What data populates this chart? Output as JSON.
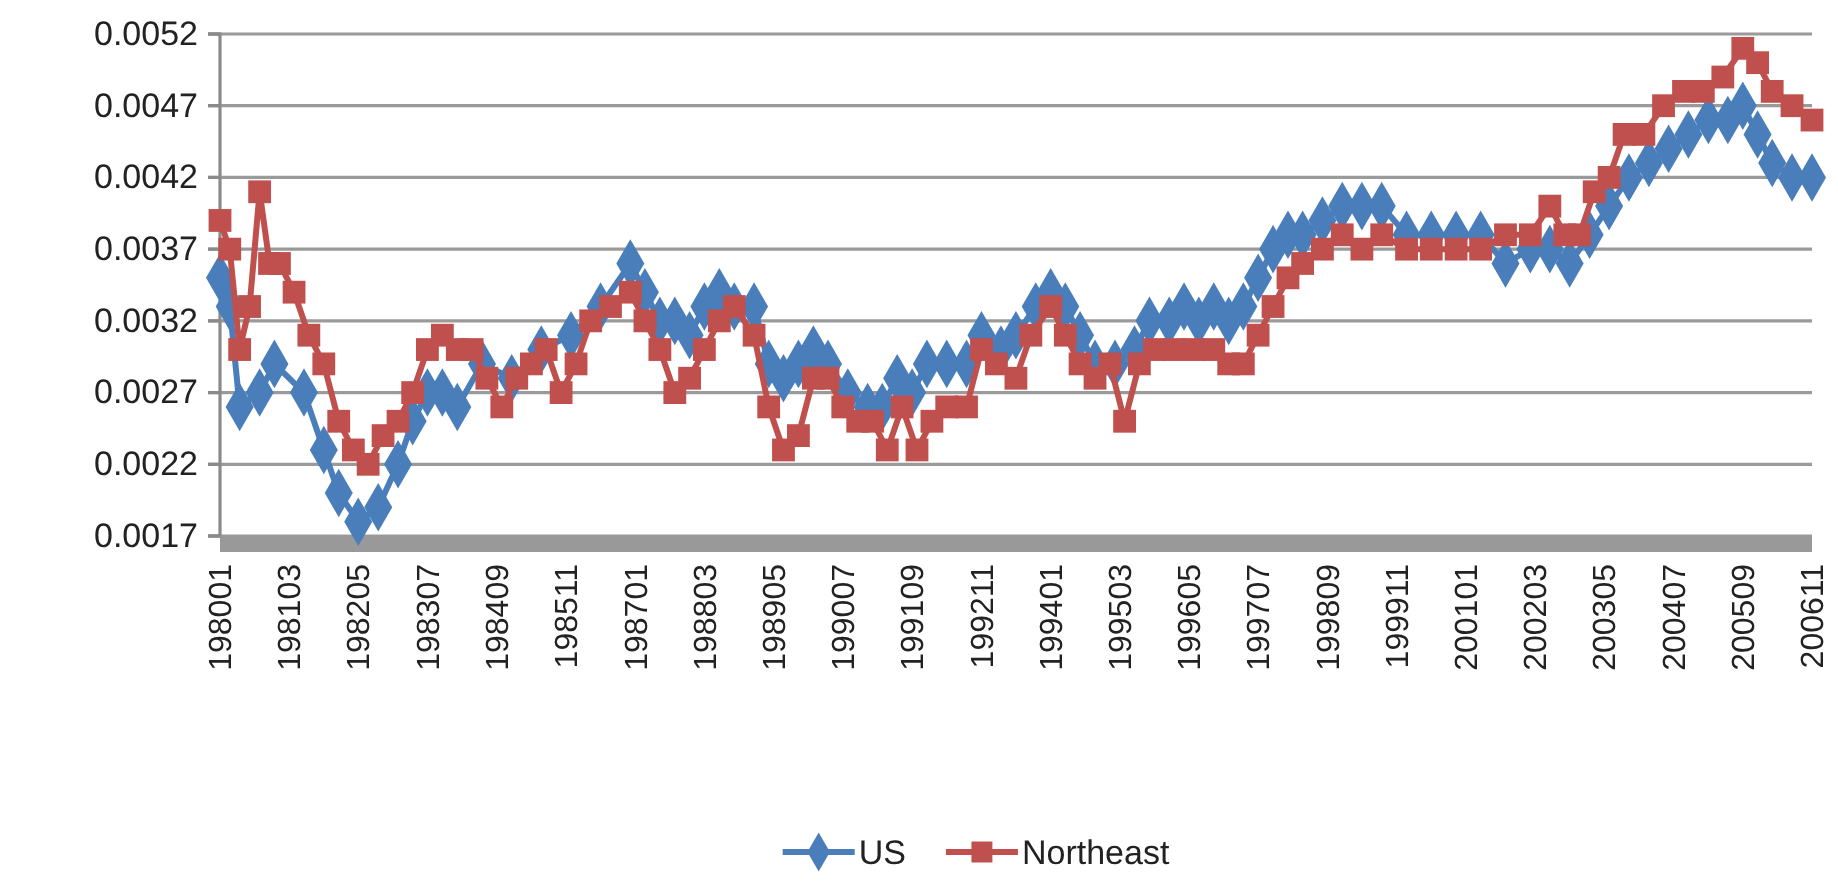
{
  "chart_data": {
    "type": "line",
    "xlim": [
      "1980-01",
      "2006-11"
    ],
    "xticks": [
      {
        "value": "1980-01",
        "label": "198001"
      },
      {
        "value": "1981-03",
        "label": "198103"
      },
      {
        "value": "1982-05",
        "label": "198205"
      },
      {
        "value": "1983-07",
        "label": "198307"
      },
      {
        "value": "1984-09",
        "label": "198409"
      },
      {
        "value": "1985-11",
        "label": "198511"
      },
      {
        "value": "1987-01",
        "label": "198701"
      },
      {
        "value": "1988-03",
        "label": "198803"
      },
      {
        "value": "1989-05",
        "label": "198905"
      },
      {
        "value": "1990-07",
        "label": "199007"
      },
      {
        "value": "1991-09",
        "label": "199109"
      },
      {
        "value": "1992-11",
        "label": "199211"
      },
      {
        "value": "1994-01",
        "label": "199401"
      },
      {
        "value": "1995-03",
        "label": "199503"
      },
      {
        "value": "1996-05",
        "label": "199605"
      },
      {
        "value": "1997-07",
        "label": "199707"
      },
      {
        "value": "1998-09",
        "label": "199809"
      },
      {
        "value": "1999-11",
        "label": "199911"
      },
      {
        "value": "2001-01",
        "label": "200101"
      },
      {
        "value": "2002-03",
        "label": "200203"
      },
      {
        "value": "2003-05",
        "label": "200305"
      },
      {
        "value": "2004-07",
        "label": "200407"
      },
      {
        "value": "2005-09",
        "label": "200509"
      },
      {
        "value": "2006-11",
        "label": "200611"
      }
    ],
    "ylim": [
      0.0017,
      0.0052
    ],
    "yticks": [
      0.0017,
      0.0022,
      0.0027,
      0.0032,
      0.0037,
      0.0042,
      0.0047,
      0.0052
    ],
    "grid": "y",
    "legend": "bottom",
    "series": [
      {
        "name": "US",
        "color": "#4a7ebb",
        "marker": "diamond",
        "x": [
          "1980-01",
          "1980-03",
          "1980-05",
          "1980-09",
          "1980-12",
          "1981-06",
          "1981-10",
          "1982-01",
          "1982-05",
          "1982-09",
          "1983-01",
          "1983-04",
          "1983-07",
          "1983-10",
          "1984-01",
          "1984-06",
          "1984-12",
          "1985-06",
          "1985-12",
          "1986-06",
          "1986-12",
          "1987-03",
          "1987-06",
          "1987-09",
          "1987-12",
          "1988-03",
          "1988-06",
          "1988-09",
          "1989-01",
          "1989-04",
          "1989-07",
          "1989-10",
          "1990-01",
          "1990-04",
          "1990-08",
          "1990-12",
          "1991-03",
          "1991-06",
          "1991-09",
          "1991-12",
          "1992-04",
          "1992-08",
          "1992-11",
          "1993-03",
          "1993-06",
          "1993-10",
          "1994-01",
          "1994-04",
          "1994-07",
          "1994-10",
          "1995-02",
          "1995-06",
          "1995-09",
          "1996-01",
          "1996-04",
          "1996-07",
          "1996-10",
          "1997-01",
          "1997-04",
          "1997-07",
          "1997-10",
          "1998-01",
          "1998-04",
          "1998-08",
          "1998-12",
          "1999-04",
          "1999-08",
          "2000-01",
          "2000-06",
          "2000-11",
          "2001-04",
          "2001-09",
          "2002-02",
          "2002-06",
          "2002-10",
          "2003-02",
          "2003-06",
          "2003-10",
          "2004-02",
          "2004-06",
          "2004-10",
          "2005-02",
          "2005-06",
          "2005-09",
          "2005-12",
          "2006-03",
          "2006-07",
          "2006-11"
        ],
        "values": [
          0.0035,
          0.0033,
          0.0026,
          0.0027,
          0.0029,
          0.0027,
          0.0023,
          0.002,
          0.0018,
          0.0019,
          0.0022,
          0.0025,
          0.0027,
          0.0027,
          0.0026,
          0.0029,
          0.0028,
          0.003,
          0.0031,
          0.0033,
          0.0036,
          0.0034,
          0.0032,
          0.0032,
          0.0031,
          0.0033,
          0.0034,
          0.0033,
          0.0033,
          0.0029,
          0.0028,
          0.0029,
          0.003,
          0.0029,
          0.0027,
          0.0026,
          0.0026,
          0.0028,
          0.0027,
          0.0029,
          0.0029,
          0.0029,
          0.0031,
          0.003,
          0.0031,
          0.0033,
          0.0034,
          0.0033,
          0.0031,
          0.0029,
          0.0029,
          0.003,
          0.0032,
          0.0032,
          0.0033,
          0.0032,
          0.0033,
          0.0032,
          0.0033,
          0.0035,
          0.0037,
          0.0038,
          0.0038,
          0.0039,
          0.004,
          0.004,
          0.004,
          0.0038,
          0.0038,
          0.0038,
          0.0038,
          0.0036,
          0.0037,
          0.0037,
          0.0036,
          0.0038,
          0.004,
          0.0042,
          0.0043,
          0.0044,
          0.0045,
          0.0046,
          0.0046,
          0.0047,
          0.0045,
          0.0043,
          0.0042,
          0.0042
        ]
      },
      {
        "name": "Northeast",
        "color": "#c0504d",
        "marker": "square",
        "x": [
          "1980-01",
          "1980-03",
          "1980-05",
          "1980-07",
          "1980-09",
          "1980-11",
          "1981-01",
          "1981-04",
          "1981-07",
          "1981-10",
          "1982-01",
          "1982-04",
          "1982-07",
          "1982-10",
          "1983-01",
          "1983-04",
          "1983-07",
          "1983-10",
          "1984-01",
          "1984-04",
          "1984-07",
          "1984-10",
          "1985-01",
          "1985-04",
          "1985-07",
          "1985-10",
          "1986-01",
          "1986-04",
          "1986-08",
          "1986-12",
          "1987-03",
          "1987-06",
          "1987-09",
          "1987-12",
          "1988-03",
          "1988-06",
          "1988-09",
          "1989-01",
          "1989-04",
          "1989-07",
          "1989-10",
          "1990-01",
          "1990-04",
          "1990-07",
          "1990-10",
          "1991-01",
          "1991-04",
          "1991-07",
          "1991-10",
          "1992-01",
          "1992-04",
          "1992-08",
          "1992-11",
          "1993-02",
          "1993-06",
          "1993-09",
          "1994-01",
          "1994-04",
          "1994-07",
          "1994-10",
          "1995-01",
          "1995-04",
          "1995-07",
          "1995-10",
          "1996-02",
          "1996-06",
          "1996-10",
          "1997-01",
          "1997-04",
          "1997-07",
          "1997-10",
          "1998-01",
          "1998-04",
          "1998-08",
          "1998-12",
          "1999-04",
          "1999-08",
          "2000-01",
          "2000-06",
          "2000-11",
          "2001-04",
          "2001-09",
          "2002-02",
          "2002-06",
          "2002-09",
          "2002-12",
          "2003-03",
          "2003-06",
          "2003-09",
          "2004-01",
          "2004-05",
          "2004-09",
          "2005-01",
          "2005-05",
          "2005-09",
          "2005-12",
          "2006-03",
          "2006-07",
          "2006-11"
        ],
        "values": [
          0.0039,
          0.0037,
          0.003,
          0.0033,
          0.0041,
          0.0036,
          0.0036,
          0.0034,
          0.0031,
          0.0029,
          0.0025,
          0.0023,
          0.0022,
          0.0024,
          0.0025,
          0.0027,
          0.003,
          0.0031,
          0.003,
          0.003,
          0.0028,
          0.0026,
          0.0028,
          0.0029,
          0.003,
          0.0027,
          0.0029,
          0.0032,
          0.0033,
          0.0034,
          0.0032,
          0.003,
          0.0027,
          0.0028,
          0.003,
          0.0032,
          0.0033,
          0.0031,
          0.0026,
          0.0023,
          0.0024,
          0.0028,
          0.0028,
          0.0026,
          0.0025,
          0.0025,
          0.0023,
          0.0026,
          0.0023,
          0.0025,
          0.0026,
          0.0026,
          0.003,
          0.0029,
          0.0028,
          0.0031,
          0.0033,
          0.0031,
          0.0029,
          0.0028,
          0.0029,
          0.0025,
          0.0029,
          0.003,
          0.003,
          0.003,
          0.003,
          0.0029,
          0.0029,
          0.0031,
          0.0033,
          0.0035,
          0.0036,
          0.0037,
          0.0038,
          0.0037,
          0.0038,
          0.0037,
          0.0037,
          0.0037,
          0.0037,
          0.0038,
          0.0038,
          0.004,
          0.0038,
          0.0038,
          0.0041,
          0.0042,
          0.0045,
          0.0045,
          0.0047,
          0.0048,
          0.0048,
          0.0049,
          0.0051,
          0.005,
          0.0048,
          0.0047,
          0.0046
        ]
      }
    ]
  }
}
